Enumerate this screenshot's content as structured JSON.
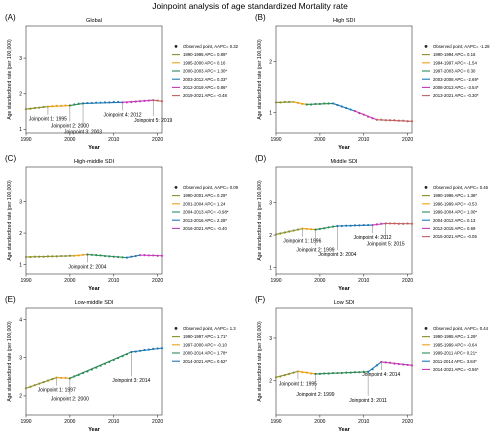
{
  "title": "Joinpoint analysis of age standardized Mortality rate",
  "chart_data": [
    {
      "type": "line",
      "letter": "(A)",
      "title": "Global",
      "xlabel": "Year",
      "ylabel": "Age standardized rate (per 100,000)",
      "xlim": [
        1990,
        2021
      ],
      "ylim": [
        0.9,
        3.9
      ],
      "xticks": [
        1990,
        2000,
        2010,
        2020
      ],
      "yticks": [
        1,
        2,
        3
      ],
      "legend": [
        "Observed point, AAPC= 0.32",
        "1990-1995 APC= 0.89*",
        "1995-2000 APC= 0.16",
        "2000-2003 APC= 1.30*",
        "2003-2012 APC= 0.33*",
        "2012-2019 APC= 0.86*",
        "2019-2021 APC= -0.48"
      ],
      "series_colors": [
        "#8b8f2a",
        "#e8a21a",
        "#2e8b57",
        "#1f78b4",
        "#c23bb4",
        "#c06060"
      ],
      "breaks": [
        1990,
        1995,
        2000,
        2003,
        2012,
        2019,
        2021
      ],
      "x": [
        1990,
        1991,
        1992,
        1993,
        1994,
        1995,
        1996,
        1997,
        1998,
        1999,
        2000,
        2001,
        2002,
        2003,
        2004,
        2005,
        2006,
        2007,
        2008,
        2009,
        2010,
        2011,
        2012,
        2013,
        2014,
        2015,
        2016,
        2017,
        2018,
        2019,
        2020,
        2021
      ],
      "y": [
        1.57,
        1.58,
        1.6,
        1.61,
        1.63,
        1.64,
        1.65,
        1.66,
        1.66,
        1.67,
        1.67,
        1.7,
        1.72,
        1.73,
        1.74,
        1.74,
        1.75,
        1.75,
        1.76,
        1.76,
        1.77,
        1.77,
        1.76,
        1.76,
        1.77,
        1.78,
        1.79,
        1.8,
        1.81,
        1.82,
        1.81,
        1.79
      ],
      "annotations": [
        {
          "label": "Joinpoint 1: 1995",
          "x": 1995
        },
        {
          "label": "Joinpoint 2: 2000",
          "x": 2000
        },
        {
          "label": "Joinpoint 3: 2003",
          "x": 2003
        },
        {
          "label": "Joinpoint 4: 2012",
          "x": 2012
        },
        {
          "label": "Joinpoint 5: 2019",
          "x": 2019
        }
      ]
    },
    {
      "type": "line",
      "letter": "(B)",
      "title": "High SDI",
      "xlabel": "Year",
      "ylabel": "Age standardized rate (per 100,000)",
      "xlim": [
        1990,
        2021
      ],
      "ylim": [
        0.6,
        2.7
      ],
      "xticks": [
        1990,
        2000,
        2010,
        2020
      ],
      "yticks": [
        1,
        2
      ],
      "legend": [
        "Observed point, AAPC= -1.28",
        "1990-1994 APC= 0.16",
        "1994-1997 APC= -1.54",
        "1997-2003 APC= 0.30",
        "2003-2008 APC= -2.69*",
        "2008-2013 APC= -3.54*",
        "2013-2021 APC= -0.30*"
      ],
      "series_colors": [
        "#8b8f2a",
        "#e8a21a",
        "#2e8b57",
        "#1f78b4",
        "#c23bb4",
        "#c06060"
      ],
      "breaks": [
        1990,
        1994,
        1997,
        2003,
        2008,
        2013,
        2021
      ],
      "x": [
        1990,
        1991,
        1992,
        1993,
        1994,
        1995,
        1996,
        1997,
        1998,
        1999,
        2000,
        2001,
        2002,
        2003,
        2004,
        2005,
        2006,
        2007,
        2008,
        2009,
        2010,
        2011,
        2012,
        2013,
        2014,
        2015,
        2016,
        2017,
        2018,
        2019,
        2020,
        2021
      ],
      "y": [
        1.2,
        1.2,
        1.21,
        1.21,
        1.21,
        1.19,
        1.17,
        1.16,
        1.16,
        1.17,
        1.17,
        1.18,
        1.18,
        1.18,
        1.15,
        1.12,
        1.09,
        1.06,
        1.03,
        0.99,
        0.96,
        0.92,
        0.89,
        0.86,
        0.86,
        0.85,
        0.85,
        0.85,
        0.84,
        0.84,
        0.83,
        0.83
      ],
      "annotations": []
    },
    {
      "type": "line",
      "letter": "(C)",
      "title": "High-middle SDI",
      "xlabel": "Year",
      "ylabel": "Age standardized rate (per 100,000)",
      "xlim": [
        1990,
        2021
      ],
      "ylim": [
        0.7,
        4.1
      ],
      "xticks": [
        1990,
        2000,
        2010,
        2020
      ],
      "yticks": [
        1,
        2,
        3
      ],
      "legend": [
        "Observed point, AAPC= 0.09",
        "1990-2001 APC= 0.29*",
        "2001-2004 APC= 1.24",
        "2004-2013 APC= -0.98*",
        "2013-2016 APC= 2.28*",
        "2016-2021 APC= -0.40"
      ],
      "series_colors": [
        "#8b8f2a",
        "#e8a21a",
        "#2e8b57",
        "#1f78b4",
        "#c23bb4"
      ],
      "breaks": [
        1990,
        2001,
        2004,
        2013,
        2016,
        2021
      ],
      "x": [
        1990,
        1991,
        1992,
        1993,
        1994,
        1995,
        1996,
        1997,
        1998,
        1999,
        2000,
        2001,
        2002,
        2003,
        2004,
        2005,
        2006,
        2007,
        2008,
        2009,
        2010,
        2011,
        2012,
        2013,
        2014,
        2015,
        2016,
        2017,
        2018,
        2019,
        2020,
        2021
      ],
      "y": [
        1.24,
        1.24,
        1.25,
        1.25,
        1.25,
        1.26,
        1.26,
        1.26,
        1.27,
        1.27,
        1.28,
        1.28,
        1.29,
        1.31,
        1.32,
        1.31,
        1.3,
        1.29,
        1.27,
        1.26,
        1.25,
        1.24,
        1.23,
        1.22,
        1.25,
        1.27,
        1.3,
        1.3,
        1.29,
        1.29,
        1.28,
        1.28
      ],
      "annotations": [
        {
          "label": "Joinpoint 2: 2004",
          "x": 2004
        }
      ]
    },
    {
      "type": "line",
      "letter": "(D)",
      "title": "Middle SDI",
      "xlabel": "Year",
      "ylabel": "Age standardized rate (per 100,000)",
      "xlim": [
        1990,
        2021
      ],
      "ylim": [
        0.8,
        4.1
      ],
      "xticks": [
        1990,
        2000,
        2010,
        2020
      ],
      "yticks": [
        1,
        2,
        3
      ],
      "legend": [
        "Observed point, AAPC= 0.46",
        "1990-1996 APC= 1.38*",
        "1996-1999 APC= -0.53",
        "1999-2004 APC= 1.00*",
        "2004-2012 APC= 0.13",
        "2012-2015 APC= 0.69",
        "2015-2021 APC= -0.05"
      ],
      "series_colors": [
        "#8b8f2a",
        "#e8a21a",
        "#2e8b57",
        "#1f78b4",
        "#c23bb4",
        "#c06060"
      ],
      "breaks": [
        1990,
        1996,
        1999,
        2004,
        2012,
        2015,
        2021
      ],
      "x": [
        1990,
        1991,
        1992,
        1993,
        1994,
        1995,
        1996,
        1997,
        1998,
        1999,
        2000,
        2001,
        2002,
        2003,
        2004,
        2005,
        2006,
        2007,
        2008,
        2009,
        2010,
        2011,
        2012,
        2013,
        2014,
        2015,
        2016,
        2017,
        2018,
        2019,
        2020,
        2021
      ],
      "y": [
        2.02,
        2.05,
        2.08,
        2.11,
        2.14,
        2.17,
        2.2,
        2.19,
        2.18,
        2.17,
        2.19,
        2.21,
        2.24,
        2.26,
        2.28,
        2.28,
        2.29,
        2.29,
        2.3,
        2.3,
        2.31,
        2.31,
        2.31,
        2.33,
        2.35,
        2.36,
        2.36,
        2.36,
        2.35,
        2.35,
        2.36,
        2.35
      ],
      "annotations": [
        {
          "label": "Joinpoint 1: 1996",
          "x": 1996
        },
        {
          "label": "Joinpoint 2: 1999",
          "x": 1999
        },
        {
          "label": "Joinpoint 3: 2004",
          "x": 2004
        },
        {
          "label": "Joinpoint 4: 2012",
          "x": 2012
        },
        {
          "label": "Joinpoint 5: 2015",
          "x": 2015
        }
      ]
    },
    {
      "type": "line",
      "letter": "(E)",
      "title": "Low-middle SDI",
      "xlabel": "Year",
      "ylabel": "Age standardized rate (per 100,000)",
      "xlim": [
        1990,
        2021
      ],
      "ylim": [
        1.5,
        4.3
      ],
      "xticks": [
        1990,
        2000,
        2010,
        2020
      ],
      "yticks": [
        2,
        3,
        4
      ],
      "legend": [
        "Observed point, AAPC= 1.3",
        "1990-1997 APC= 1.71*",
        "1997-2000 APC= -0.10",
        "2000-2014 APC= 1.78*",
        "2014-2021 APC= 0.52*"
      ],
      "series_colors": [
        "#8b8f2a",
        "#e8a21a",
        "#2e8b57",
        "#1f78b4"
      ],
      "breaks": [
        1990,
        1997,
        2000,
        2014,
        2021
      ],
      "x": [
        1990,
        1991,
        1992,
        1993,
        1994,
        1995,
        1996,
        1997,
        1998,
        1999,
        2000,
        2001,
        2002,
        2003,
        2004,
        2005,
        2006,
        2007,
        2008,
        2009,
        2010,
        2011,
        2012,
        2013,
        2014,
        2015,
        2016,
        2017,
        2018,
        2019,
        2020,
        2021
      ],
      "y": [
        2.2,
        2.24,
        2.28,
        2.32,
        2.36,
        2.4,
        2.44,
        2.48,
        2.47,
        2.47,
        2.46,
        2.51,
        2.55,
        2.6,
        2.64,
        2.69,
        2.74,
        2.79,
        2.84,
        2.89,
        2.94,
        2.99,
        3.04,
        3.09,
        3.15,
        3.16,
        3.18,
        3.2,
        3.21,
        3.23,
        3.24,
        3.25
      ],
      "annotations": [
        {
          "label": "Joinpoint 1: 1997",
          "x": 1997
        },
        {
          "label": "Joinpoint 2: 2000",
          "x": 2000
        },
        {
          "label": "Joinpoint 3: 2014",
          "x": 2014
        }
      ]
    },
    {
      "type": "line",
      "letter": "(F)",
      "title": "Low SDI",
      "xlabel": "Year",
      "ylabel": "Age standardized rate (per 100,000)",
      "xlim": [
        1990,
        2021
      ],
      "ylim": [
        1.2,
        3.7
      ],
      "xticks": [
        1990,
        2000,
        2010,
        2020
      ],
      "yticks": [
        2,
        3
      ],
      "legend": [
        "Observed point, AAPC= 0.44",
        "1990-1995 APC= 1.29*",
        "1995-1999 APC= -0.64",
        "1999-2011 APC= 0.21*",
        "2011-2014 APC= 3.84*",
        "2014-2021 APC= -0.56*"
      ],
      "series_colors": [
        "#8b8f2a",
        "#e8a21a",
        "#2e8b57",
        "#1f78b4",
        "#c23bb4"
      ],
      "breaks": [
        1990,
        1995,
        1999,
        2011,
        2014,
        2021
      ],
      "x": [
        1990,
        1991,
        1992,
        1993,
        1994,
        1995,
        1996,
        1997,
        1998,
        1999,
        2000,
        2001,
        2002,
        2003,
        2004,
        2005,
        2006,
        2007,
        2008,
        2009,
        2010,
        2011,
        2012,
        2013,
        2014,
        2015,
        2016,
        2017,
        2018,
        2019,
        2020,
        2021
      ],
      "y": [
        2.08,
        2.1,
        2.13,
        2.16,
        2.19,
        2.22,
        2.2,
        2.19,
        2.17,
        2.16,
        2.16,
        2.17,
        2.17,
        2.18,
        2.18,
        2.18,
        2.19,
        2.19,
        2.2,
        2.2,
        2.21,
        2.21,
        2.27,
        2.36,
        2.44,
        2.43,
        2.42,
        2.4,
        2.39,
        2.38,
        2.37,
        2.36
      ],
      "annotations": [
        {
          "label": "Joinpoint 1: 1995",
          "x": 1995
        },
        {
          "label": "Joinpoint 2: 1999",
          "x": 1999
        },
        {
          "label": "Joinpoint 3: 2011",
          "x": 2011
        },
        {
          "label": "Joinpoint 4: 2014",
          "x": 2014
        }
      ]
    }
  ]
}
